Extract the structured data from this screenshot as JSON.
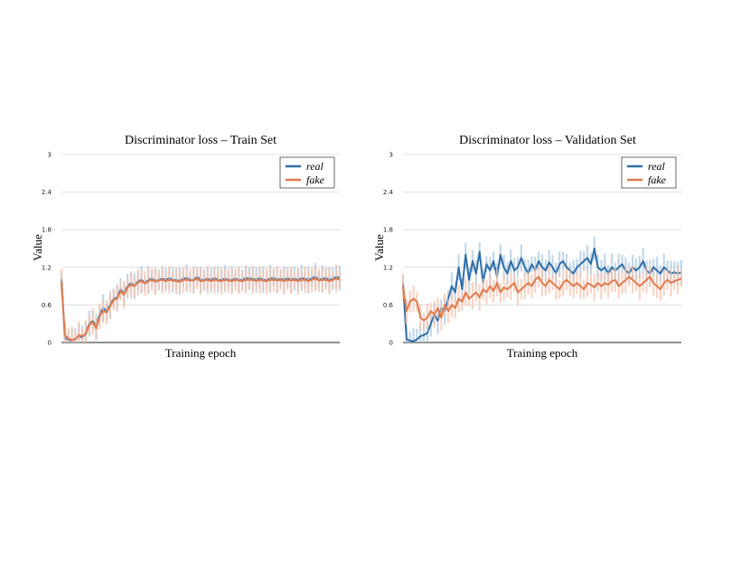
{
  "colors": {
    "real": "#2f6fa8",
    "fake": "#e07b4e",
    "real_raw": "#a9c7e0",
    "fake_raw": "#f6c3ad",
    "grid": "#d6d6d6"
  },
  "chart_data": [
    {
      "type": "line",
      "title": "Discriminator loss – Train Set",
      "xlabel": "Training epoch",
      "ylabel": "Value",
      "ylim": [
        0,
        3
      ],
      "yticks": [
        "0",
        "0.6",
        "1.2",
        "1.8",
        "2.4",
        "3"
      ],
      "grid": true,
      "legend": "top-right",
      "x": [
        0,
        1,
        2,
        3,
        4,
        5,
        6,
        7,
        8,
        9,
        10,
        11,
        12,
        13,
        14,
        15,
        16,
        17,
        18,
        19,
        20,
        21,
        22,
        23,
        24,
        25,
        26,
        27,
        28,
        29,
        30,
        31,
        32,
        33,
        34,
        35,
        36,
        37,
        38,
        39,
        40,
        41,
        42,
        43,
        44,
        45,
        46,
        47,
        48,
        49,
        50,
        51,
        52,
        53,
        54,
        55,
        56,
        57,
        58,
        59,
        60,
        61,
        62,
        63,
        64,
        65,
        66,
        67,
        68,
        69,
        70,
        71,
        72,
        73,
        74,
        75,
        76,
        77,
        78,
        79,
        80
      ],
      "series": [
        {
          "name": "real",
          "values": [
            1.02,
            0.08,
            0.04,
            0.03,
            0.06,
            0.1,
            0.08,
            0.15,
            0.3,
            0.35,
            0.25,
            0.45,
            0.55,
            0.5,
            0.6,
            0.7,
            0.72,
            0.85,
            0.78,
            0.9,
            0.95,
            0.9,
            0.98,
            1.0,
            0.95,
            1.0,
            1.02,
            0.98,
            1.0,
            1.02,
            1.0,
            1.03,
            1.0,
            1.0,
            0.98,
            1.02,
            1.03,
            1.0,
            1.0,
            1.05,
            1.0,
            1.0,
            1.02,
            1.0,
            1.03,
            1.0,
            1.0,
            1.02,
            1.0,
            1.0,
            1.02,
            1.0,
            1.0,
            1.03,
            1.02,
            1.02,
            1.0,
            1.03,
            1.0,
            1.0,
            1.02,
            1.03,
            1.0,
            1.02,
            1.0,
            1.03,
            1.0,
            1.02,
            1.0,
            1.03,
            1.02,
            1.0,
            1.03,
            1.05,
            1.0,
            1.02,
            1.03,
            1.0,
            1.02,
            1.05,
            1.03
          ]
        },
        {
          "name": "fake",
          "values": [
            0.98,
            0.12,
            0.06,
            0.04,
            0.05,
            0.12,
            0.1,
            0.14,
            0.28,
            0.33,
            0.22,
            0.42,
            0.5,
            0.48,
            0.58,
            0.68,
            0.7,
            0.82,
            0.76,
            0.88,
            0.92,
            0.9,
            0.96,
            0.98,
            0.94,
            0.98,
            1.0,
            0.97,
            0.99,
            1.0,
            0.98,
            1.0,
            0.99,
            0.98,
            0.97,
            1.0,
            1.0,
            0.99,
            0.99,
            1.02,
            0.98,
            0.99,
            1.0,
            0.98,
            1.0,
            0.99,
            0.98,
            1.0,
            0.99,
            0.98,
            1.0,
            0.99,
            0.98,
            1.0,
            1.0,
            1.0,
            0.98,
            1.0,
            0.99,
            0.98,
            1.0,
            1.0,
            0.99,
            1.0,
            0.98,
            1.0,
            0.99,
            1.0,
            0.98,
            1.0,
            1.0,
            0.98,
            1.0,
            1.02,
            0.99,
            1.0,
            1.0,
            0.98,
            1.0,
            1.02,
            1.0
          ]
        }
      ]
    },
    {
      "type": "line",
      "title": "Discriminator loss – Validation Set",
      "xlabel": "Training epoch",
      "ylabel": "Value",
      "ylim": [
        0,
        3
      ],
      "yticks": [
        "0",
        "0.6",
        "1.2",
        "1.8",
        "2.4",
        "3"
      ],
      "grid": true,
      "legend": "top-right",
      "x": [
        0,
        1,
        2,
        3,
        4,
        5,
        6,
        7,
        8,
        9,
        10,
        11,
        12,
        13,
        14,
        15,
        16,
        17,
        18,
        19,
        20,
        21,
        22,
        23,
        24,
        25,
        26,
        27,
        28,
        29,
        30,
        31,
        32,
        33,
        34,
        35,
        36,
        37,
        38,
        39,
        40,
        41,
        42,
        43,
        44,
        45,
        46,
        47,
        48,
        49,
        50,
        51,
        52,
        53,
        54,
        55,
        56,
        57,
        58,
        59,
        60,
        61,
        62,
        63,
        64,
        65,
        66,
        67,
        68,
        69,
        70,
        71,
        72,
        73,
        74,
        75,
        76,
        77,
        78,
        79,
        80
      ],
      "series": [
        {
          "name": "real",
          "values": [
            0.95,
            0.05,
            0.03,
            0.02,
            0.05,
            0.1,
            0.12,
            0.15,
            0.3,
            0.45,
            0.35,
            0.55,
            0.5,
            0.7,
            0.9,
            0.8,
            1.2,
            0.85,
            1.4,
            1.0,
            1.3,
            1.1,
            1.45,
            0.95,
            1.25,
            1.15,
            1.3,
            1.05,
            1.4,
            1.2,
            1.1,
            1.3,
            1.15,
            1.2,
            1.35,
            1.2,
            1.1,
            1.25,
            1.15,
            1.3,
            1.2,
            1.15,
            1.28,
            1.2,
            1.1,
            1.25,
            1.3,
            1.2,
            1.15,
            1.1,
            1.2,
            1.25,
            1.3,
            1.35,
            1.25,
            1.5,
            1.2,
            1.15,
            1.2,
            1.1,
            1.2,
            1.15,
            1.2,
            1.25,
            1.15,
            1.1,
            1.2,
            1.15,
            1.2,
            1.3,
            1.15,
            1.1,
            1.2,
            1.15,
            1.1,
            1.2,
            1.15,
            1.1,
            1.12,
            1.1,
            1.12
          ]
        },
        {
          "name": "fake",
          "values": [
            0.9,
            0.5,
            0.65,
            0.7,
            0.65,
            0.4,
            0.35,
            0.4,
            0.5,
            0.45,
            0.55,
            0.4,
            0.6,
            0.5,
            0.6,
            0.55,
            0.7,
            0.65,
            0.8,
            0.7,
            0.75,
            0.8,
            0.72,
            0.85,
            0.8,
            0.9,
            0.82,
            0.95,
            0.8,
            0.88,
            0.85,
            0.9,
            0.95,
            0.8,
            0.85,
            0.9,
            0.95,
            0.9,
            1.0,
            1.05,
            0.95,
            0.9,
            1.0,
            0.95,
            0.9,
            0.85,
            0.95,
            1.0,
            0.95,
            0.9,
            0.95,
            0.9,
            0.85,
            0.95,
            0.92,
            0.88,
            0.95,
            0.9,
            0.95,
            0.92,
            0.98,
            1.0,
            0.9,
            0.95,
            1.0,
            1.05,
            1.0,
            0.95,
            0.9,
            0.95,
            1.0,
            1.05,
            0.95,
            0.9,
            0.85,
            0.95,
            1.0,
            0.95,
            0.98,
            1.0,
            1.02
          ]
        }
      ]
    }
  ]
}
